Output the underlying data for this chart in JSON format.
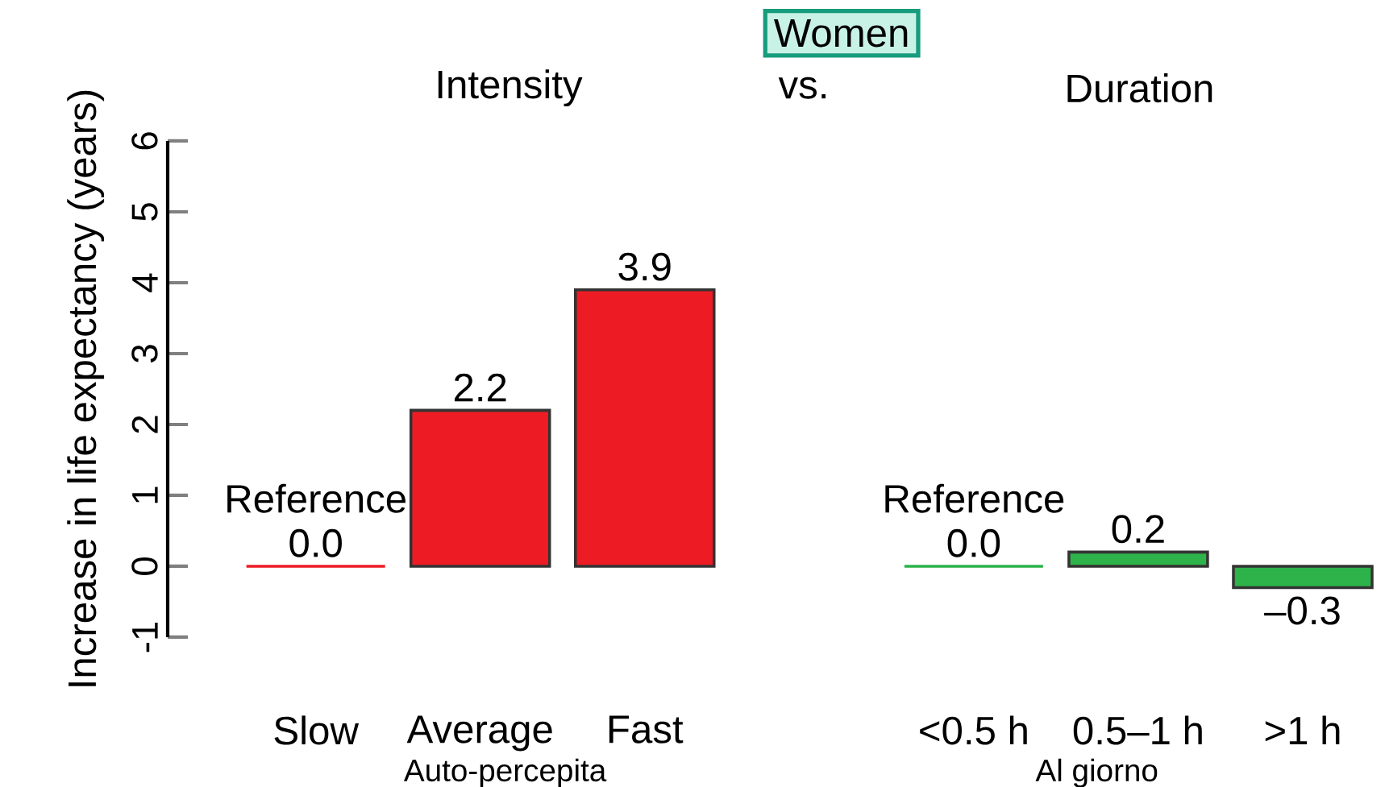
{
  "chart_data": {
    "type": "bar",
    "title": "Women",
    "ylabel": "Increase in life expectancy (years)",
    "categories": [
      "Slow",
      "Average",
      "Fast",
      null,
      "<0.5 h",
      "0.5–1 h",
      ">1 h"
    ],
    "values": [
      0.0,
      2.2,
      3.9,
      null,
      0.0,
      0.2,
      -0.3
    ],
    "colors": [
      "#ed1c24",
      "#ed1c24",
      "#ed1c24",
      null,
      "#2db34a",
      "#2db34a",
      "#2db34a"
    ],
    "value_labels": [
      "0.0",
      "2.2",
      "3.9",
      null,
      "0.0",
      "0.2",
      "–0.3"
    ],
    "annotations": [
      {
        "text": "Reference",
        "x": "Slow",
        "y": 0
      },
      {
        "text": "Reference",
        "x": "<0.5 h",
        "y": 0
      },
      "Intensity",
      "vs.",
      "Duration",
      "Auto-percepita",
      "Al giorno"
    ],
    "ylim": [
      -1,
      6
    ],
    "yticks": [
      -1,
      0,
      1,
      2,
      3,
      4,
      5,
      6
    ]
  }
}
